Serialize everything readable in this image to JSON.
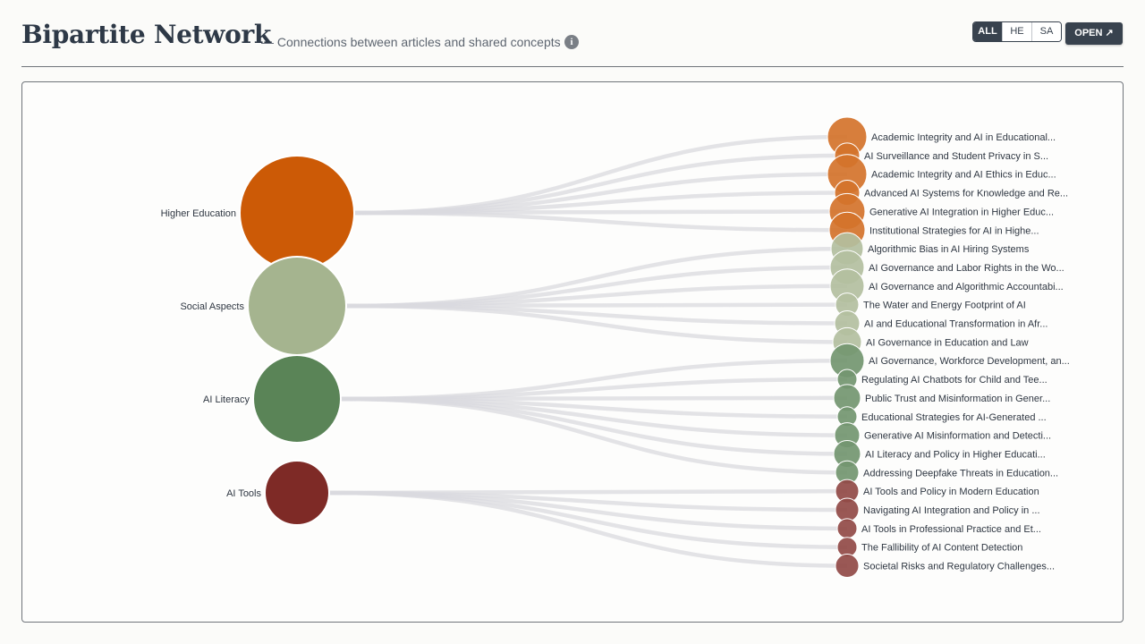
{
  "header": {
    "title": "Bipartite Network",
    "subtitle": "— Connections between articles and shared concepts",
    "info_icon": "info-icon",
    "filters": [
      {
        "label": "ALL",
        "active": true
      },
      {
        "label": "HE",
        "active": false
      },
      {
        "label": "SA",
        "active": false
      }
    ],
    "open_label": "OPEN ↗"
  },
  "network": {
    "concepts": [
      {
        "name": "Higher Education",
        "color": "#cc5a06",
        "size": 64
      },
      {
        "name": "Social Aspects",
        "color": "#a5b48f",
        "size": 55
      },
      {
        "name": "AI Literacy",
        "color": "#5a8457",
        "size": 49
      },
      {
        "name": "AI Tools",
        "color": "#7e2a26",
        "size": 36
      }
    ],
    "articles": [
      {
        "title": "Academic Integrity and AI in Educational...",
        "concept": 0,
        "size": 22
      },
      {
        "title": "AI Surveillance and Student Privacy in S...",
        "concept": 0,
        "size": 14
      },
      {
        "title": "Academic Integrity and AI Ethics in Educ...",
        "concept": 0,
        "size": 22
      },
      {
        "title": "Advanced AI Systems for Knowledge and Re...",
        "concept": 0,
        "size": 14
      },
      {
        "title": "Generative AI Integration in Higher Educ...",
        "concept": 0,
        "size": 20
      },
      {
        "title": "Institutional Strategies for AI in Highe...",
        "concept": 0,
        "size": 20
      },
      {
        "title": "Algorithmic Bias in AI Hiring Systems",
        "concept": 1,
        "size": 18
      },
      {
        "title": "AI Governance and Labor Rights in the Wo...",
        "concept": 1,
        "size": 19
      },
      {
        "title": "AI Governance and Algorithmic Accountabi...",
        "concept": 1,
        "size": 19
      },
      {
        "title": "The Water and Energy Footprint of AI",
        "concept": 1,
        "size": 13
      },
      {
        "title": "AI and Educational Transformation in Afr...",
        "concept": 1,
        "size": 14
      },
      {
        "title": "AI Governance in Education and Law",
        "concept": 1,
        "size": 16
      },
      {
        "title": "AI Governance, Workforce Development, an...",
        "concept": 2,
        "size": 19
      },
      {
        "title": "Regulating AI Chatbots for Child and Tee...",
        "concept": 2,
        "size": 11
      },
      {
        "title": "Public Trust and Misinformation in Gener...",
        "concept": 2,
        "size": 15
      },
      {
        "title": "Educational Strategies for AI-Generated ...",
        "concept": 2,
        "size": 11
      },
      {
        "title": "Generative AI Misinformation and Detecti...",
        "concept": 2,
        "size": 14
      },
      {
        "title": "AI Literacy and Policy in Higher Educati...",
        "concept": 2,
        "size": 15
      },
      {
        "title": "Addressing Deepfake Threats in Education...",
        "concept": 2,
        "size": 13
      },
      {
        "title": "AI Tools and Policy in Modern Education",
        "concept": 3,
        "size": 13
      },
      {
        "title": "Navigating AI Integration and Policy in ...",
        "concept": 3,
        "size": 13
      },
      {
        "title": "AI Tools in Professional Practice and Et...",
        "concept": 3,
        "size": 11
      },
      {
        "title": "The Fallibility of AI Content Detection",
        "concept": 3,
        "size": 11
      },
      {
        "title": "Societal Risks and Regulatory Challenges...",
        "concept": 3,
        "size": 13
      }
    ]
  }
}
